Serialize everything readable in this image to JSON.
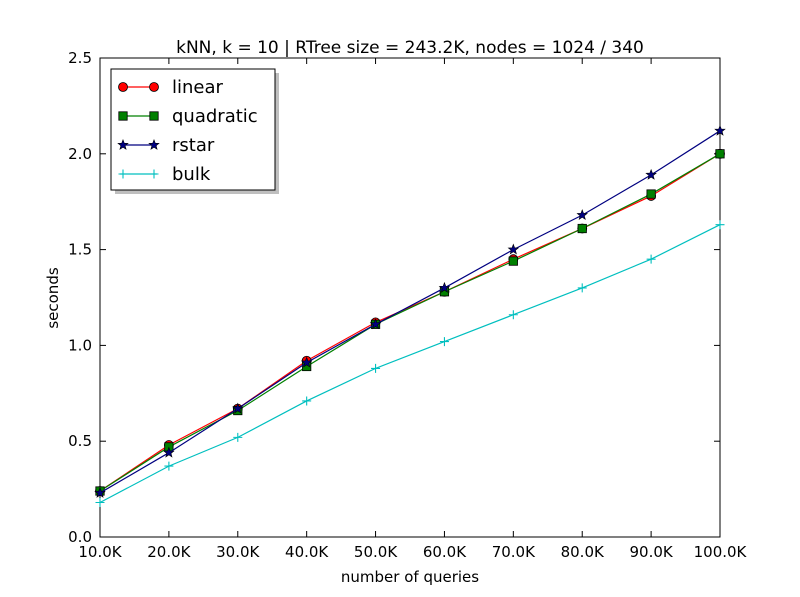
{
  "chart_data": {
    "type": "line",
    "title": "kNN, k = 10 | RTree size = 243.2K, nodes = 1024 / 340",
    "xlabel": "number of queries",
    "ylabel": "seconds",
    "x": [
      10000,
      20000,
      30000,
      40000,
      50000,
      60000,
      70000,
      80000,
      90000,
      100000
    ],
    "x_tick_labels": [
      "10.0K",
      "20.0K",
      "30.0K",
      "40.0K",
      "50.0K",
      "60.0K",
      "70.0K",
      "80.0K",
      "90.0K",
      "100.0K"
    ],
    "xlim": [
      10000,
      100000
    ],
    "ylim": [
      0.0,
      2.5
    ],
    "y_ticks": [
      0.0,
      0.5,
      1.0,
      1.5,
      2.0,
      2.5
    ],
    "y_tick_labels": [
      "0.0",
      "0.5",
      "1.0",
      "1.5",
      "2.0",
      "2.5"
    ],
    "grid": false,
    "legend_position": "top-left",
    "series": [
      {
        "name": "linear",
        "color": "#ff0000",
        "marker": "circle",
        "values": [
          0.24,
          0.48,
          0.67,
          0.92,
          1.12,
          1.28,
          1.45,
          1.61,
          1.78,
          2.0
        ]
      },
      {
        "name": "quadratic",
        "color": "#008000",
        "marker": "square",
        "values": [
          0.24,
          0.47,
          0.66,
          0.89,
          1.11,
          1.28,
          1.44,
          1.61,
          1.79,
          2.0
        ]
      },
      {
        "name": "rstar",
        "color": "#000080",
        "marker": "star",
        "values": [
          0.23,
          0.44,
          0.67,
          0.91,
          1.11,
          1.3,
          1.5,
          1.68,
          1.89,
          2.12
        ]
      },
      {
        "name": "bulk",
        "color": "#00bfbf",
        "marker": "plus",
        "values": [
          0.18,
          0.37,
          0.52,
          0.71,
          0.88,
          1.02,
          1.16,
          1.3,
          1.45,
          1.63
        ]
      }
    ]
  }
}
